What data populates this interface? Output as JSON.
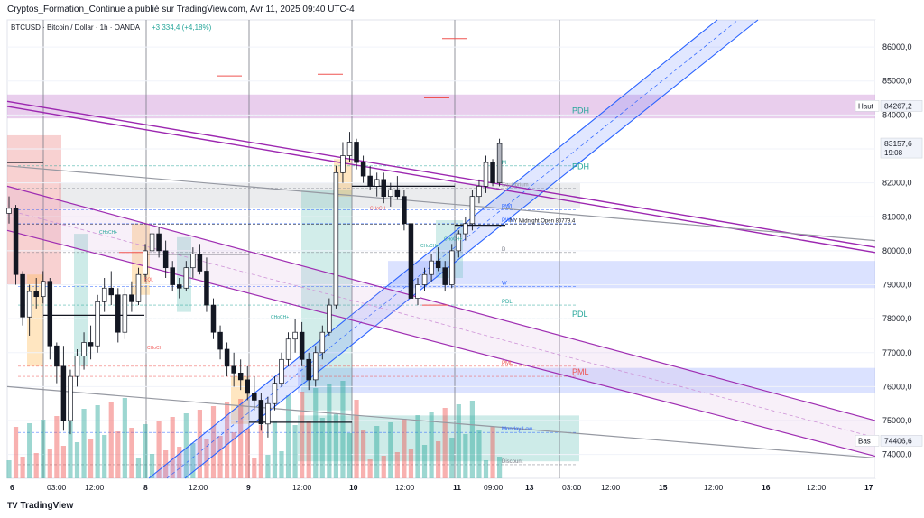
{
  "header": {
    "publisher_line": "Cryptos_Formation_Continue a publié sur TradingView.com, Avr 11, 2025 09:40 UTC-4"
  },
  "footer": {
    "brand": "TradingView"
  },
  "colors": {
    "up": "#26a69a",
    "down": "#ef5350",
    "trend_blue": "#2962ff",
    "trend_purple": "#9c27b0",
    "premium_zone": "#ce93d8",
    "level_blue": "#2962ff"
  },
  "chart_data": {
    "type": "candlestick",
    "symbol_line": "BTCUSD · Bitcoin / Dollar · 1h · OANDA",
    "change": "+3 334,4 (+4,18%)",
    "ylim": [
      73300,
      86800
    ],
    "x_ticks": [
      "6",
      "03:00",
      "12:00",
      "8",
      "12:00",
      "9",
      "12:00",
      "10",
      "12:00",
      "11",
      "09:00",
      "13",
      "03:00",
      "12:00",
      "15",
      "12:00",
      "16",
      "12:00",
      "17"
    ],
    "y_ticks": [
      "86000,0",
      "85000,0",
      "84000,0",
      "83000,0",
      "82000,0",
      "81000,0",
      "80000,0",
      "79000,0",
      "78000,0",
      "77000,0",
      "76000,0",
      "75000,0",
      "74000,0"
    ],
    "price_tags": [
      {
        "label": "Haut",
        "value": "84267,2",
        "price": 84267.2
      },
      {
        "label": "",
        "value": "83157,6",
        "sub": "19:08",
        "price": 83157.6
      },
      {
        "label": "Bas",
        "value": "74406,6",
        "price": 74406.6
      }
    ],
    "levels": [
      {
        "label": "PDH",
        "price": 84000
      },
      {
        "label": "M",
        "price": 82500
      },
      {
        "label": "PDH",
        "price": 82350
      },
      {
        "label": "Equilibrium",
        "price": 81850
      },
      {
        "label": "PWL",
        "price": 81200
      },
      {
        "label": "PWH",
        "price": 80800
      },
      {
        "label": "NY Midnight Open",
        "value": "80779.4",
        "price": 80779.4
      },
      {
        "label": "D",
        "price": 79950
      },
      {
        "label": "W",
        "price": 78950
      },
      {
        "label": "PDL",
        "price": 78400
      },
      {
        "label": "PDL",
        "price": 78000
      },
      {
        "label": "PML",
        "price": 76600
      },
      {
        "label": "PML",
        "price": 76300
      },
      {
        "label": "Monday Low",
        "price": 74650
      },
      {
        "label": "Discount",
        "price": 73700
      }
    ],
    "structure_labels": [
      "CHoCH+",
      "CHoCH",
      "EQL",
      "CHoCH+",
      "CHoCH+",
      "CHoCH",
      "CHoCH+"
    ],
    "candles": [
      [
        81100,
        81600,
        80800,
        81250
      ],
      [
        81250,
        81350,
        79000,
        79300
      ],
      [
        79300,
        79400,
        77800,
        78050
      ],
      [
        78050,
        79000,
        77500,
        78800
      ],
      [
        78800,
        79200,
        78300,
        78650
      ],
      [
        78650,
        79400,
        78450,
        79100
      ],
      [
        79100,
        79200,
        76800,
        77200
      ],
      [
        77200,
        77300,
        76100,
        76600
      ],
      [
        76600,
        77200,
        74700,
        75000
      ],
      [
        75000,
        76500,
        74600,
        76300
      ],
      [
        76300,
        77100,
        76000,
        76900
      ],
      [
        76900,
        77600,
        76500,
        77300
      ],
      [
        77300,
        77800,
        76800,
        77200
      ],
      [
        77200,
        78700,
        77000,
        78500
      ],
      [
        78500,
        79200,
        78200,
        78900
      ],
      [
        78900,
        79400,
        78400,
        78700
      ],
      [
        78700,
        78900,
        77300,
        77600
      ],
      [
        77600,
        78900,
        77400,
        78700
      ],
      [
        78700,
        79100,
        78200,
        78500
      ],
      [
        78500,
        79500,
        78400,
        79300
      ],
      [
        79300,
        80200,
        79100,
        80000
      ],
      [
        80000,
        80800,
        79700,
        80500
      ],
      [
        80500,
        80700,
        79800,
        80000
      ],
      [
        80000,
        80300,
        79200,
        79500
      ],
      [
        79500,
        79700,
        78800,
        79000
      ],
      [
        79000,
        79200,
        78600,
        78900
      ],
      [
        78900,
        79700,
        78800,
        79500
      ],
      [
        79500,
        80100,
        79200,
        79900
      ],
      [
        79900,
        80200,
        79300,
        79400
      ],
      [
        79400,
        79800,
        78200,
        78400
      ],
      [
        78400,
        78600,
        77400,
        77600
      ],
      [
        77600,
        77800,
        76800,
        77100
      ],
      [
        77100,
        77300,
        76300,
        76600
      ],
      [
        76600,
        77000,
        76000,
        76400
      ],
      [
        76400,
        76800,
        75900,
        76200
      ],
      [
        76200,
        76600,
        75600,
        75800
      ],
      [
        75800,
        76300,
        75300,
        75600
      ],
      [
        75600,
        75800,
        74700,
        74900
      ],
      [
        74900,
        75700,
        74500,
        75500
      ],
      [
        75500,
        76300,
        75300,
        76100
      ],
      [
        76100,
        77000,
        76000,
        76800
      ],
      [
        76800,
        77600,
        76600,
        77400
      ],
      [
        77400,
        78000,
        77000,
        77600
      ],
      [
        77600,
        77900,
        76600,
        76800
      ],
      [
        76800,
        77000,
        75900,
        76200
      ],
      [
        76200,
        77200,
        76000,
        77000
      ],
      [
        77000,
        77800,
        76800,
        77600
      ],
      [
        77600,
        78600,
        77500,
        78400
      ],
      [
        78400,
        82500,
        78300,
        82300
      ],
      [
        82300,
        83200,
        82000,
        82800
      ],
      [
        82800,
        83500,
        82600,
        83200
      ],
      [
        83200,
        83300,
        82400,
        82600
      ],
      [
        82600,
        82800,
        82000,
        82200
      ],
      [
        82200,
        82500,
        81800,
        81900
      ],
      [
        81900,
        82300,
        81600,
        82100
      ],
      [
        82100,
        82300,
        81400,
        81600
      ],
      [
        81600,
        82000,
        81300,
        81800
      ],
      [
        81800,
        82200,
        81500,
        81600
      ],
      [
        81600,
        81800,
        80600,
        80800
      ],
      [
        80800,
        81000,
        78300,
        78600
      ],
      [
        78600,
        79200,
        78400,
        79000
      ],
      [
        79000,
        79500,
        78800,
        79300
      ],
      [
        79300,
        79900,
        79100,
        79700
      ],
      [
        79700,
        80100,
        79400,
        79500
      ],
      [
        79500,
        79700,
        78800,
        79000
      ],
      [
        79000,
        80200,
        78900,
        80000
      ],
      [
        80000,
        80600,
        79800,
        80500
      ],
      [
        80500,
        81000,
        80300,
        80800
      ],
      [
        80800,
        81800,
        80600,
        81600
      ],
      [
        81600,
        82100,
        81400,
        81900
      ],
      [
        81900,
        82800,
        81700,
        82600
      ],
      [
        82600,
        82700,
        81900,
        82000
      ],
      [
        82000,
        83300,
        81900,
        83157.6
      ]
    ]
  }
}
